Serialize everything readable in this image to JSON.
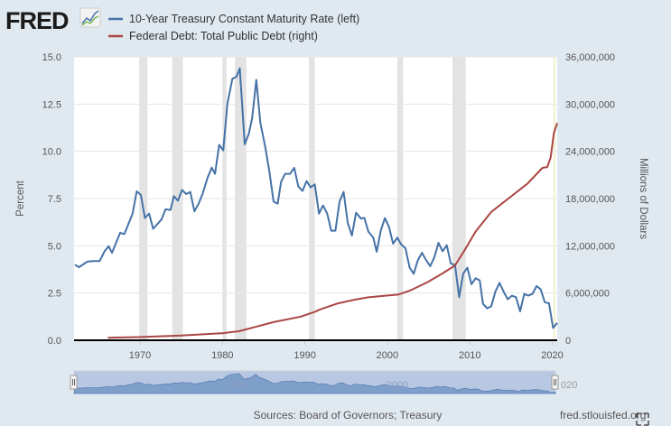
{
  "logo": {
    "text": "FRED"
  },
  "chart_data": {
    "type": "line",
    "title": "",
    "xlim": [
      1962,
      2020.6
    ],
    "x_ticks": [
      "1970",
      "1980",
      "1990",
      "2000",
      "2010",
      "2020"
    ],
    "grid": true,
    "legend_placement": "top-left",
    "left_axis": {
      "label": "Percent",
      "ylim": [
        0,
        15
      ],
      "ticks": [
        "0.0",
        "2.5",
        "5.0",
        "7.5",
        "10.0",
        "12.5",
        "15.0"
      ]
    },
    "right_axis": {
      "label": "Millions of Dollars",
      "ylim": [
        0,
        36000000
      ],
      "ticks": [
        "0",
        "6,000,000",
        "12,000,000",
        "18,000,000",
        "24,000,000",
        "30,000,000",
        "36,000,000"
      ]
    },
    "recessions": [
      [
        1969.9,
        1970.9
      ],
      [
        1973.9,
        1975.2
      ],
      [
        1980.0,
        1980.5
      ],
      [
        1981.5,
        1982.9
      ],
      [
        1990.5,
        1991.2
      ],
      [
        2001.2,
        2001.9
      ],
      [
        2007.9,
        2009.5
      ],
      [
        2020.1,
        2020.4
      ]
    ],
    "series": [
      {
        "name": "10-Year Treasury Constant Maturity Rate (left)",
        "axis": "left",
        "color": "#4572a7",
        "x": [
          1962.1,
          1962.6,
          1963.6,
          1964.3,
          1965.1,
          1965.7,
          1966.2,
          1966.6,
          1967.6,
          1968.1,
          1969.1,
          1969.6,
          1970.1,
          1970.6,
          1971.1,
          1971.6,
          1972.6,
          1973.1,
          1973.7,
          1974.1,
          1974.6,
          1975.1,
          1975.6,
          1976.1,
          1976.6,
          1977.1,
          1977.6,
          1978.2,
          1978.7,
          1979.1,
          1979.6,
          1980.1,
          1980.6,
          1981.2,
          1981.7,
          1982.1,
          1982.7,
          1983.2,
          1983.6,
          1984.1,
          1984.6,
          1985.2,
          1985.7,
          1986.2,
          1986.7,
          1987.1,
          1987.6,
          1988.2,
          1988.7,
          1989.2,
          1989.7,
          1990.2,
          1990.7,
          1991.2,
          1991.7,
          1992.2,
          1992.7,
          1993.2,
          1993.7,
          1994.2,
          1994.7,
          1995.2,
          1995.7,
          1996.2,
          1996.8,
          1997.2,
          1997.7,
          1998.3,
          1998.7,
          1999.2,
          1999.7,
          2000.2,
          2000.7,
          2001.2,
          2001.7,
          2002.2,
          2002.7,
          2003.2,
          2003.7,
          2004.2,
          2004.7,
          2005.2,
          2005.7,
          2006.2,
          2006.7,
          2007.2,
          2007.7,
          2008.2,
          2008.7,
          2009.2,
          2009.7,
          2010.2,
          2010.7,
          2011.2,
          2011.6,
          2012.1,
          2012.6,
          2013.1,
          2013.6,
          2014.1,
          2014.6,
          2015.1,
          2015.6,
          2016.1,
          2016.6,
          2017.1,
          2017.6,
          2018.1,
          2018.6,
          2019.1,
          2019.6,
          2020.1,
          2020.6
        ],
        "values": [
          4.0,
          3.87,
          4.16,
          4.19,
          4.19,
          4.71,
          4.98,
          4.63,
          5.69,
          5.62,
          6.7,
          7.88,
          7.69,
          6.47,
          6.7,
          5.9,
          6.39,
          6.93,
          6.9,
          7.63,
          7.39,
          7.96,
          7.74,
          7.85,
          6.82,
          7.23,
          7.76,
          8.61,
          9.14,
          8.81,
          10.34,
          10.05,
          12.52,
          13.84,
          13.95,
          14.4,
          10.37,
          10.93,
          11.75,
          13.78,
          11.51,
          10.21,
          8.9,
          7.34,
          7.23,
          8.38,
          8.81,
          8.81,
          9.13,
          8.14,
          7.9,
          8.42,
          8.09,
          8.25,
          6.7,
          7.13,
          6.7,
          5.8,
          5.8,
          7.34,
          7.85,
          6.2,
          5.54,
          6.75,
          6.44,
          6.48,
          5.75,
          5.43,
          4.68,
          5.8,
          6.47,
          5.99,
          5.11,
          5.43,
          5.06,
          4.87,
          3.84,
          3.52,
          4.24,
          4.63,
          4.24,
          3.92,
          4.4,
          5.16,
          4.71,
          5.03,
          4.05,
          4.0,
          2.28,
          3.52,
          3.84,
          2.96,
          3.28,
          3.17,
          1.93,
          1.69,
          1.8,
          2.57,
          3.04,
          2.57,
          2.17,
          2.36,
          2.28,
          1.53,
          2.45,
          2.36,
          2.45,
          2.87,
          2.69,
          2.01,
          1.96,
          0.65,
          0.92
        ]
      },
      {
        "name": "Federal Debt: Total Public Debt (right)",
        "axis": "right",
        "color": "#aa4643",
        "x": [
          1966.1,
          1969.8,
          1975.0,
          1980.1,
          1982.0,
          1984.0,
          1986.2,
          1989.5,
          1991.3,
          1991.7,
          1993.9,
          1995.8,
          1997.6,
          1999.6,
          2001.3,
          2002.7,
          2004.9,
          2006.7,
          2008.2,
          2009.3,
          2010.7,
          2012.6,
          2014.8,
          2017.0,
          2018.8,
          2019.4,
          2019.8,
          2020.2,
          2020.6
        ],
        "values": [
          320000,
          400000,
          600000,
          900000,
          1150000,
          1700000,
          2300000,
          3000000,
          3650000,
          3860000,
          4650000,
          5100000,
          5450000,
          5650000,
          5800000,
          6300000,
          7400000,
          8500000,
          9500000,
          11300000,
          13800000,
          16300000,
          18100000,
          19900000,
          21900000,
          22000000,
          23200000,
          26300000,
          27600000
        ]
      }
    ]
  },
  "navigator": {
    "labels": [
      "1980",
      "2000",
      "020"
    ]
  },
  "footer": {
    "sources": "Sources: Board of Governors; Treasury",
    "site": "fred.stlouisfed.org"
  }
}
